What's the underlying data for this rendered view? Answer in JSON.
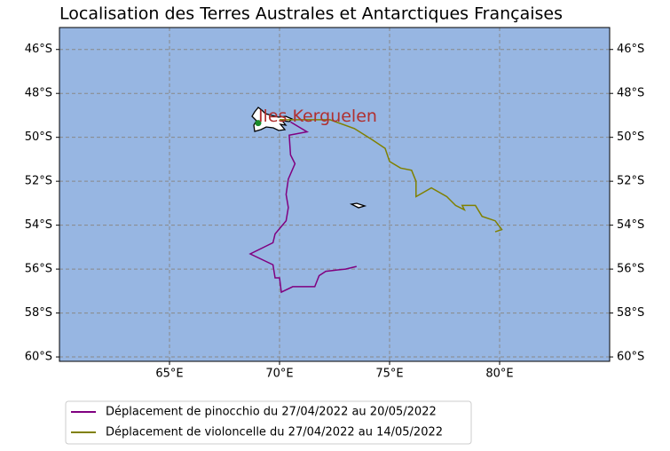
{
  "chart_data": {
    "type": "map",
    "title": "Localisation des Terres Australes et Antarctiques Françaises",
    "annotation": "Iles Kerguelen",
    "xlim": [
      60,
      85
    ],
    "ylim": [
      -60.2,
      -45.0
    ],
    "xticks": [
      {
        "value": 65,
        "label": "65°E"
      },
      {
        "value": 70,
        "label": "70°E"
      },
      {
        "value": 75,
        "label": "75°E"
      },
      {
        "value": 80,
        "label": "80°E"
      }
    ],
    "yticks": [
      {
        "value": -46,
        "label": "46°S"
      },
      {
        "value": -48,
        "label": "48°S"
      },
      {
        "value": -50,
        "label": "50°S"
      },
      {
        "value": -52,
        "label": "52°S"
      },
      {
        "value": -54,
        "label": "54°S"
      },
      {
        "value": -56,
        "label": "56°S"
      },
      {
        "value": -58,
        "label": "58°S"
      },
      {
        "value": -60,
        "label": "60°S"
      }
    ],
    "grid": true,
    "ocean_color": "#97b6e2",
    "legend": "lower left",
    "marker": {
      "x": 69.03,
      "y": -49.35,
      "color": "#1a8a2a"
    },
    "series": [
      {
        "name": "Déplacement de pinocchio du 27/04/2022 au 20/05/2022",
        "color": "#800080",
        "x": [
          70.5,
          71.25,
          70.44,
          70.5,
          70.7,
          70.4,
          70.3,
          70.4,
          70.3,
          69.8,
          69.7,
          68.67,
          69.7,
          69.8,
          70.0,
          70.08,
          70.6,
          71.6,
          71.8,
          72.1,
          73.0,
          73.5
        ],
        "values": [
          -49.3,
          -49.75,
          -49.9,
          -50.8,
          -51.2,
          -51.9,
          -52.6,
          -53.2,
          -53.8,
          -54.4,
          -54.8,
          -55.31,
          -55.8,
          -56.4,
          -56.4,
          -57.05,
          -56.8,
          -56.8,
          -56.3,
          -56.1,
          -56.0,
          -55.88
        ]
      },
      {
        "name": "Déplacement de violoncelle du 27/04/2022 au 14/05/2022",
        "color": "#808000",
        "x": [
          70.0,
          72.3,
          73.4,
          74.2,
          74.8,
          75.0,
          75.5,
          76.0,
          76.2,
          76.2,
          76.9,
          77.6,
          78.0,
          78.4,
          78.3,
          78.9,
          79.2,
          79.8,
          80.1,
          79.8
        ],
        "values": [
          -49.2,
          -49.2,
          -49.6,
          -50.1,
          -50.5,
          -51.1,
          -51.4,
          -51.5,
          -52.0,
          -52.7,
          -52.3,
          -52.7,
          -53.1,
          -53.3,
          -53.1,
          -53.1,
          -53.6,
          -53.8,
          -54.2,
          -54.3
        ]
      }
    ]
  }
}
